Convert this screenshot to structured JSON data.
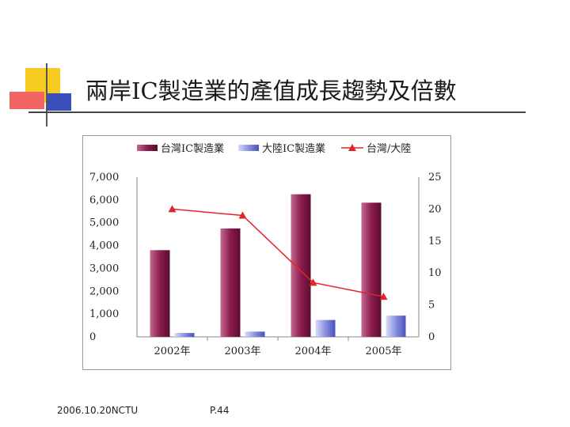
{
  "slide": {
    "title": "兩岸IC製造業的產值成長趨勢及倍數",
    "footer_left": "2006.10.20NCTU",
    "footer_page": "P.44"
  },
  "colors": {
    "bar_taiwan": "#8c1c4c",
    "bar_taiwan_light": "#c36a90",
    "bar_china": "#5a63c8",
    "bar_china_light": "#aeb3ee",
    "line_ratio": "#e0242a",
    "deco_yellow": "#f5cc1f",
    "deco_red": "#f06464",
    "deco_blue": "#3a4fb8"
  },
  "chart_data": {
    "type": "bar",
    "categories": [
      "2002年",
      "2003年",
      "2004年",
      "2005年"
    ],
    "series": [
      {
        "name": "台灣IC製造業",
        "type": "bar",
        "axis": "left",
        "values": [
          3800,
          4750,
          6250,
          5880
        ]
      },
      {
        "name": "大陸IC製造業",
        "type": "bar",
        "axis": "left",
        "values": [
          170,
          230,
          740,
          930
        ]
      },
      {
        "name": "台灣/大陸",
        "type": "line",
        "axis": "right",
        "values": [
          20.0,
          19.0,
          8.5,
          6.3
        ]
      }
    ],
    "y_left": {
      "ylim": [
        0,
        7000
      ],
      "ticks": [
        "0",
        "1,000",
        "2,000",
        "3,000",
        "4,000",
        "5,000",
        "6,000",
        "7,000"
      ]
    },
    "y_right": {
      "ylim": [
        0,
        25
      ],
      "ticks": [
        "0",
        "5",
        "10",
        "15",
        "20",
        "25"
      ]
    },
    "legend_position": "top",
    "grid": false
  }
}
